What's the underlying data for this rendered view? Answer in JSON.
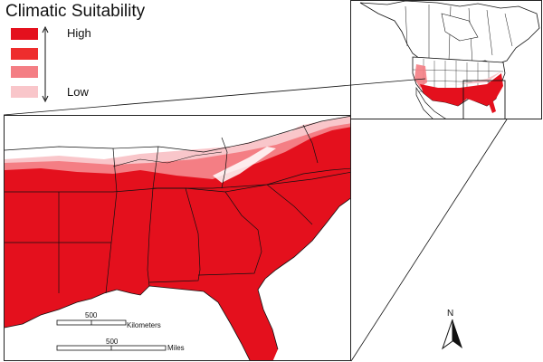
{
  "legend": {
    "title": "Climatic Suitability",
    "high_label": "High",
    "low_label": "Low",
    "classes": [
      {
        "level": "highest",
        "color": "#e4101d"
      },
      {
        "level": "high",
        "color": "#ee2d2d"
      },
      {
        "level": "medium",
        "color": "#f47e84"
      },
      {
        "level": "low",
        "color": "#f9c6ca"
      }
    ]
  },
  "scalebar": {
    "km_value": "500",
    "km_unit": "Kilometers",
    "mi_value": "500",
    "mi_unit": "Miles"
  },
  "north_arrow": {
    "label": "N"
  },
  "colors": {
    "suitability_high": "#e4101d",
    "suitability_medium": "#f47e84",
    "suitability_low": "#f9c6ca",
    "boundary": "#111111",
    "background": "#ffffff"
  }
}
